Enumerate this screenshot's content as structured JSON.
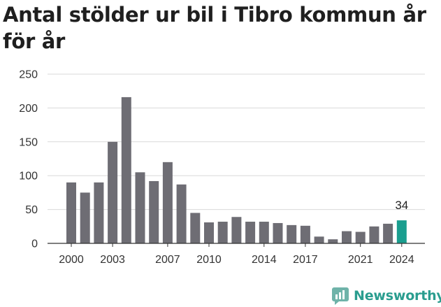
{
  "chart_data": {
    "type": "bar",
    "title": "Antal stölder ur bil i Tibro kommun år för år",
    "xlabel": "",
    "ylabel": "",
    "ylim": [
      0,
      250
    ],
    "yticks": [
      0,
      50,
      100,
      150,
      200,
      250
    ],
    "xticks": [
      2000,
      2003,
      2007,
      2010,
      2014,
      2017,
      2021,
      2024
    ],
    "grid": true,
    "categories": [
      2000,
      2001,
      2002,
      2003,
      2004,
      2005,
      2006,
      2007,
      2008,
      2009,
      2010,
      2011,
      2012,
      2013,
      2014,
      2015,
      2016,
      2017,
      2018,
      2019,
      2020,
      2021,
      2022,
      2023,
      2024
    ],
    "values": [
      90,
      75,
      90,
      150,
      216,
      105,
      92,
      120,
      87,
      45,
      31,
      32,
      39,
      32,
      32,
      30,
      27,
      26,
      10,
      6,
      18,
      17,
      25,
      29,
      34
    ],
    "data_labels": [
      {
        "category": 2024,
        "text": "34"
      }
    ],
    "bar_color": "#6e6d74",
    "highlight_color": "#1a9e8f",
    "highlight_category": 2024
  },
  "brand": {
    "name": "Newsworthy",
    "color": "#2a9d8f"
  }
}
